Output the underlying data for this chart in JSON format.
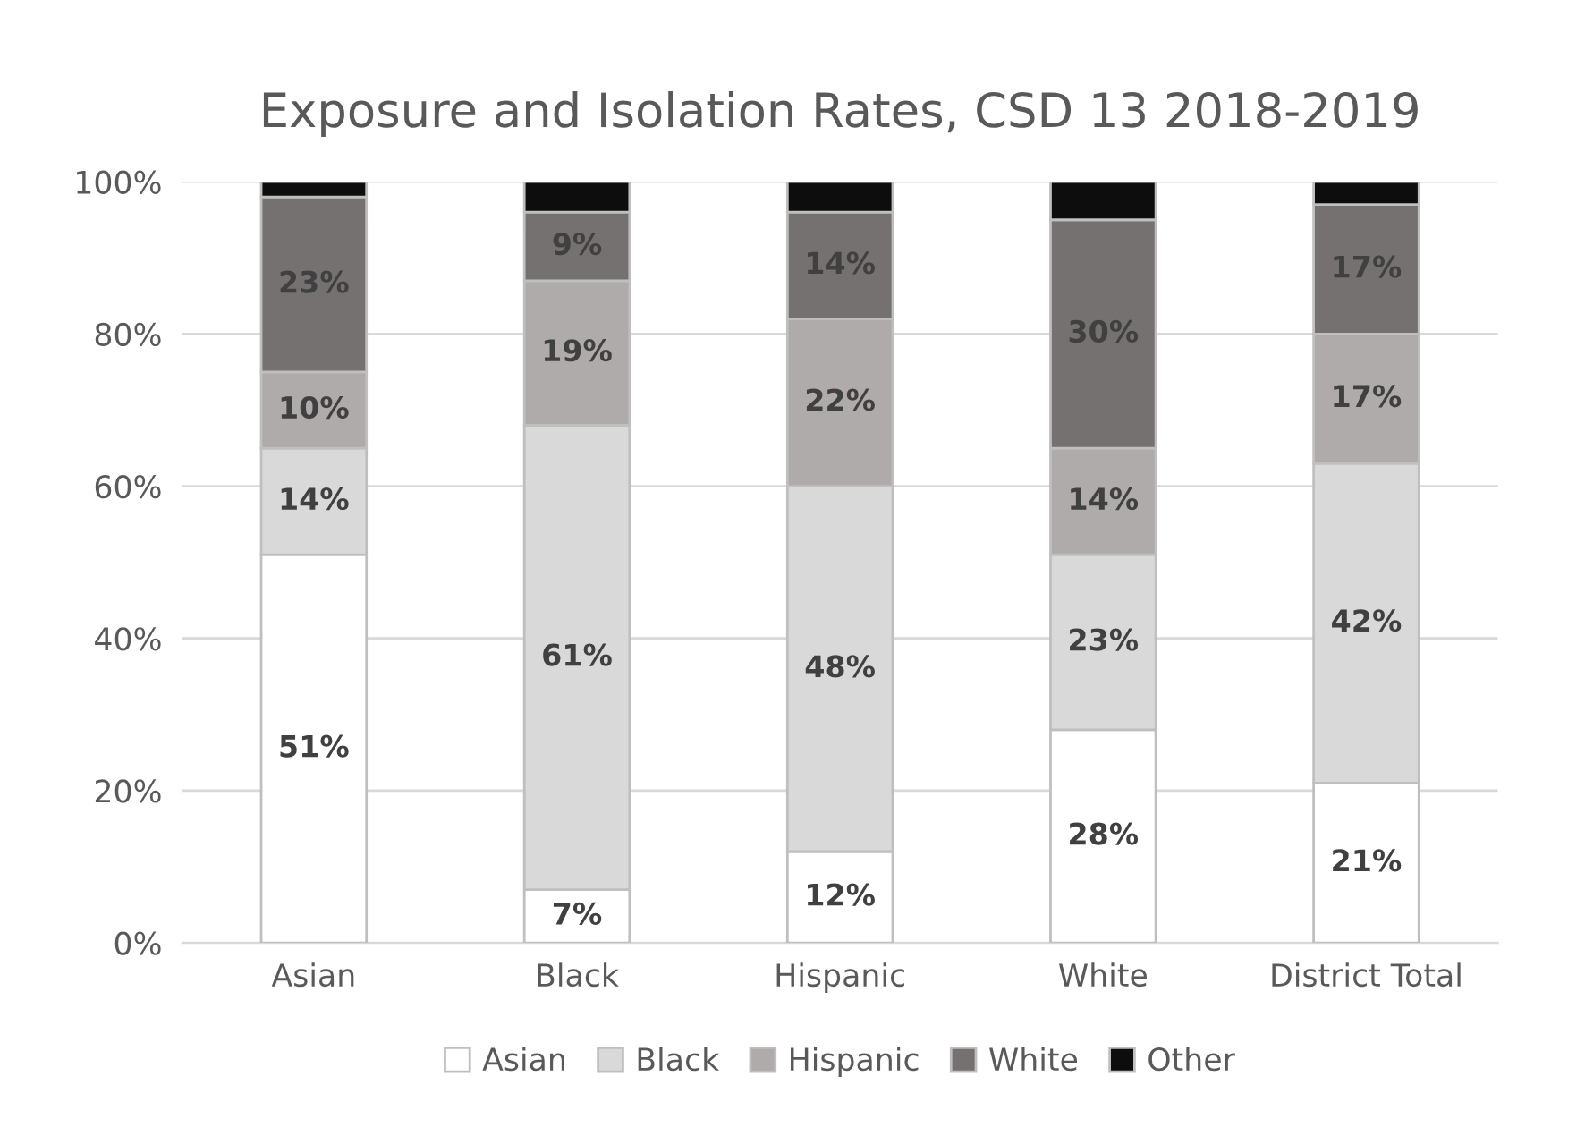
{
  "chart_data": {
    "type": "bar",
    "stacked": true,
    "title": "Exposure and Isolation Rates, CSD 13 2018-2019",
    "categories": [
      "Asian",
      "Black",
      "Hispanic",
      "White",
      "District Total"
    ],
    "series": [
      {
        "name": "Asian",
        "color": "#ffffff",
        "values": [
          51,
          7,
          12,
          28,
          21
        ],
        "value_labels": [
          "51%",
          "7%",
          "12%",
          "28%",
          "21%"
        ]
      },
      {
        "name": "Black",
        "color": "#d9d9d9",
        "values": [
          14,
          61,
          48,
          23,
          42
        ],
        "value_labels": [
          "14%",
          "61%",
          "48%",
          "23%",
          "42%"
        ]
      },
      {
        "name": "Hispanic",
        "color": "#afabab",
        "values": [
          10,
          19,
          22,
          14,
          17
        ],
        "value_labels": [
          "10%",
          "19%",
          "22%",
          "14%",
          "17%"
        ]
      },
      {
        "name": "White",
        "color": "#767171",
        "values": [
          23,
          9,
          14,
          30,
          17
        ],
        "value_labels": [
          "23%",
          "9%",
          "14%",
          "30%",
          "17%"
        ]
      },
      {
        "name": "Other",
        "color": "#0d0d0d",
        "values": [
          2,
          4,
          4,
          5,
          3
        ]
      }
    ],
    "ylim": [
      0,
      100
    ],
    "yticks": [
      {
        "value": 0,
        "label": "0%"
      },
      {
        "value": 20,
        "label": "20%"
      },
      {
        "value": 40,
        "label": "40%"
      },
      {
        "value": 60,
        "label": "60%"
      },
      {
        "value": 80,
        "label": "80%"
      },
      {
        "value": 100,
        "label": "100%"
      }
    ],
    "grid": "y",
    "legend": "bottom"
  }
}
